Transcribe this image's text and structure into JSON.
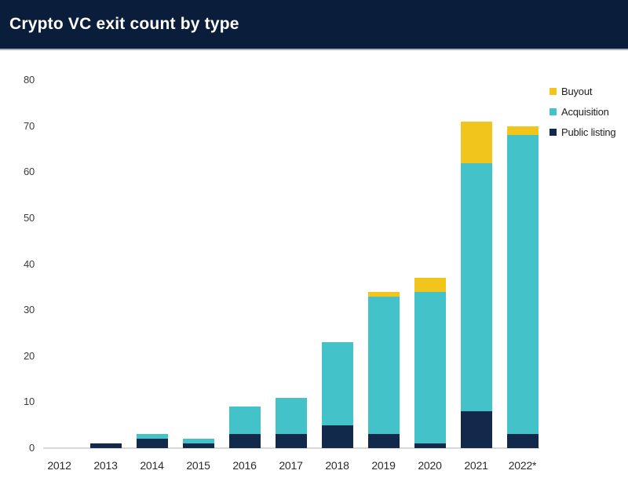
{
  "header": {
    "title": "Crypto VC exit count by type"
  },
  "colors": {
    "header_bg": "#0A1E3B",
    "header_divider": "#A9B3BF",
    "axis_line": "#D8D8D8",
    "axis_text": "#3C3C3C",
    "buyout": "#F2C51D",
    "acquisition": "#43C2C9",
    "public_listing": "#12294B"
  },
  "chart_data": {
    "type": "bar",
    "stacked": true,
    "title": "Crypto VC exit count by type",
    "xlabel": "",
    "ylabel": "",
    "ylim": [
      0,
      80
    ],
    "yticks": [
      0,
      10,
      20,
      30,
      40,
      50,
      60,
      70,
      80
    ],
    "grid": false,
    "legend_position": "top-right",
    "categories": [
      "2012",
      "2013",
      "2014",
      "2015",
      "2016",
      "2017",
      "2018",
      "2019",
      "2020",
      "2021",
      "2022*"
    ],
    "series": [
      {
        "name": "Public listing",
        "color": "#12294B",
        "values": [
          0,
          1,
          2,
          1,
          3,
          3,
          5,
          3,
          1,
          8,
          3
        ]
      },
      {
        "name": "Acquisition",
        "color": "#43C2C9",
        "values": [
          0,
          0,
          1,
          1,
          6,
          8,
          18,
          30,
          33,
          54,
          65
        ]
      },
      {
        "name": "Buyout",
        "color": "#F2C51D",
        "values": [
          0,
          0,
          0,
          0,
          0,
          0,
          0,
          1,
          3,
          9,
          2
        ]
      }
    ],
    "totals": [
      0,
      1,
      3,
      2,
      9,
      11,
      23,
      34,
      37,
      71,
      70
    ],
    "legend_order": [
      "Buyout",
      "Acquisition",
      "Public listing"
    ]
  }
}
